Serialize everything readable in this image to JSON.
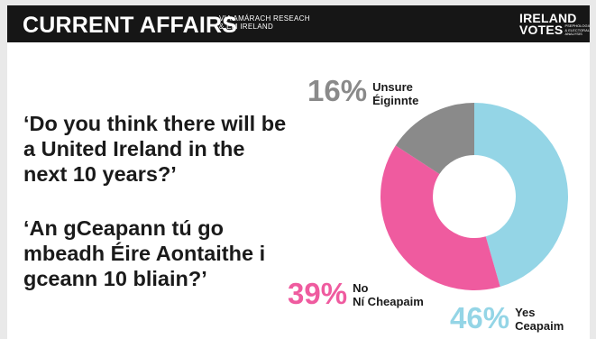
{
  "banner": {
    "title": "CURRENT AFFAIRS",
    "source_line1": "VIA AMÁRACH RESEACH",
    "source_line2": "& EM IRELAND",
    "brand_line1": "IRELAND",
    "brand_line2": "VOTES",
    "brand_tagline": "PSEPHOLOGICAL & ELECTORAL ANALYSIS"
  },
  "question_en": "‘Do you think there will be a United Ireland in the next 10 years?’",
  "question_ga": "‘An gCeapann tú go mbeadh Éire Aontaithe i gceann 10 bliain?’",
  "chart_data": {
    "type": "pie",
    "donut": true,
    "slices": [
      {
        "label_en": "Yes",
        "label_ga": "Ceapaim",
        "value": 46,
        "value_label": "46%",
        "color": "#94d5e6"
      },
      {
        "label_en": "No",
        "label_ga": "Ní Cheapaim",
        "value": 39,
        "value_label": "39%",
        "color": "#ef5b9f"
      },
      {
        "label_en": "Unsure",
        "label_ga": "Éiginnte",
        "value": 16,
        "value_label": "16%",
        "color": "#8a8a8a"
      }
    ]
  }
}
